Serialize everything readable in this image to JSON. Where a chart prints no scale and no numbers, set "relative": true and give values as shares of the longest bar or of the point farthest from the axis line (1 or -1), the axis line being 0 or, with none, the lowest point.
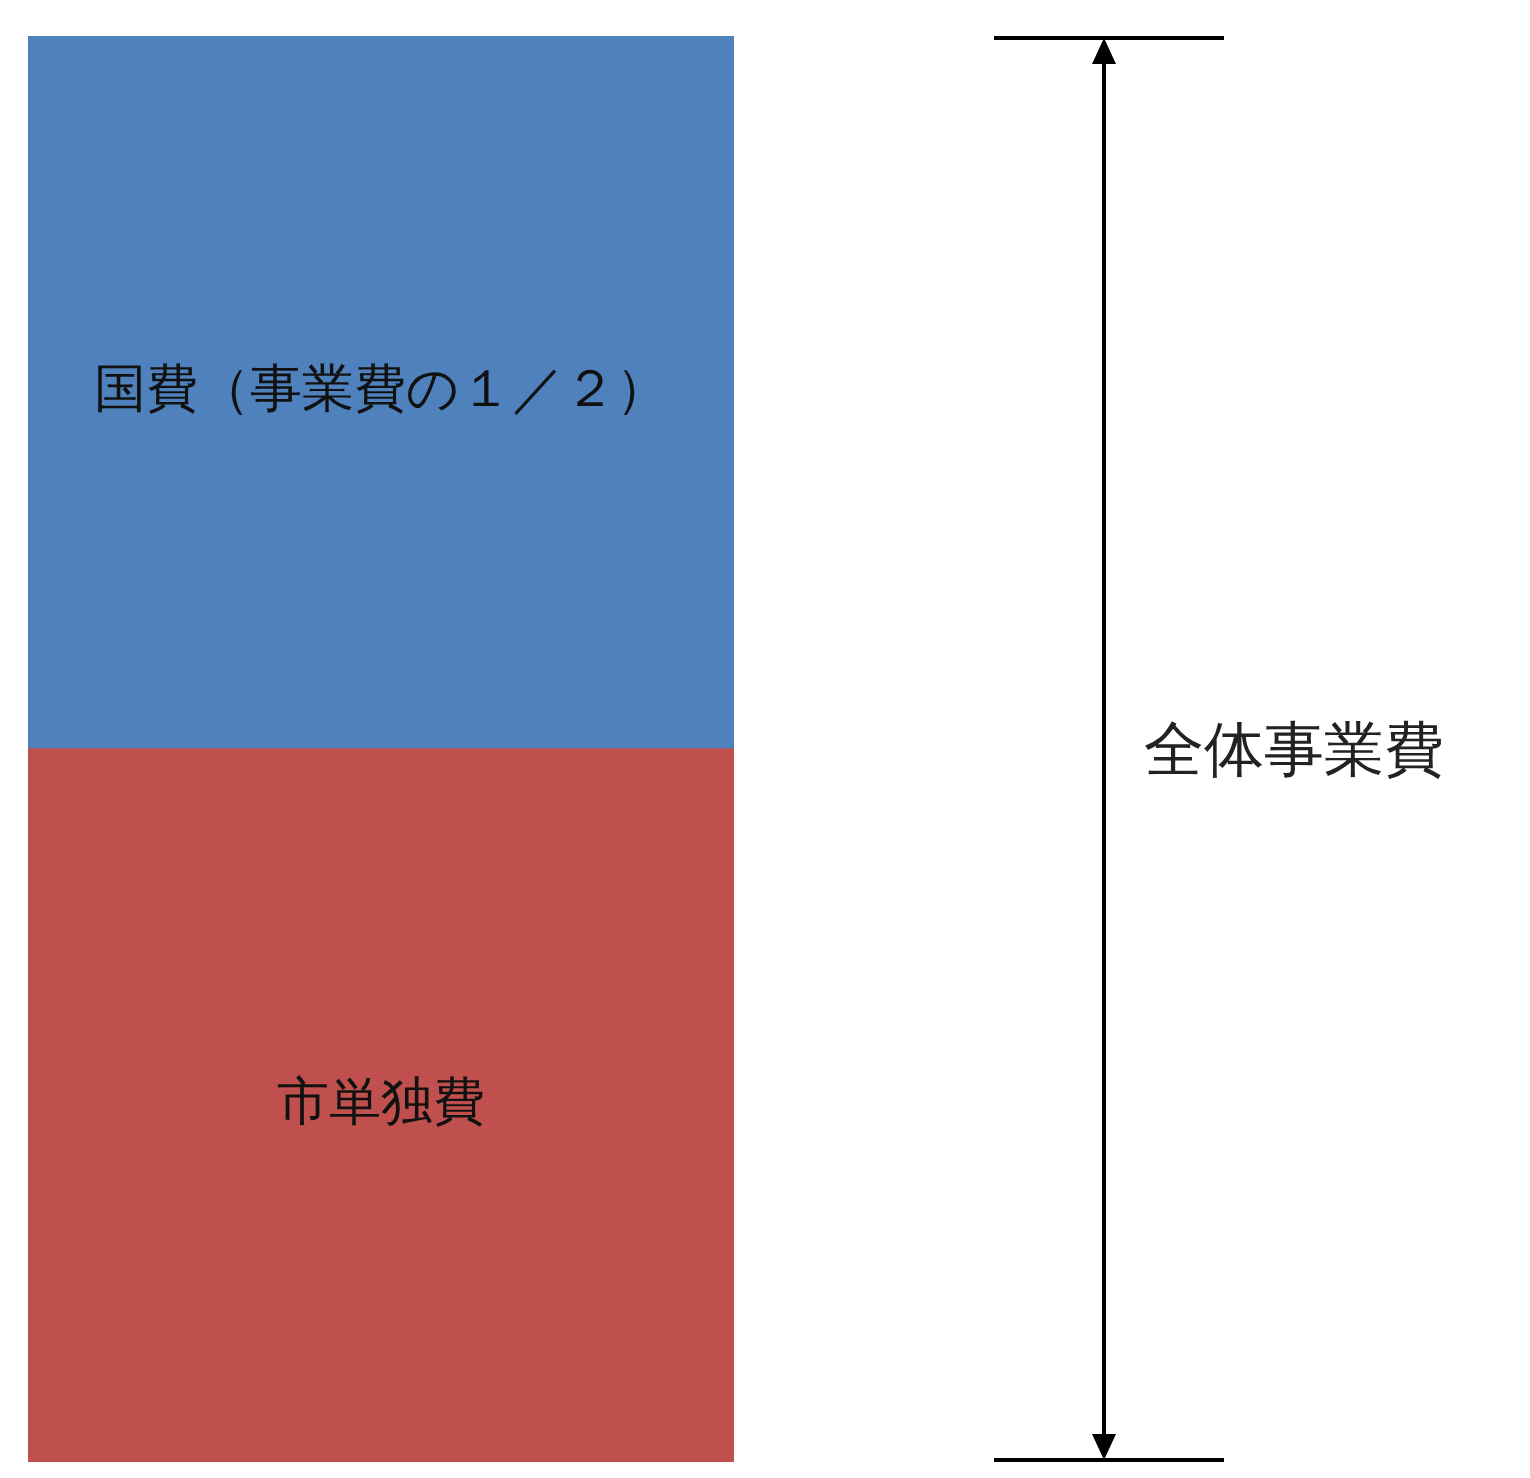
{
  "chart_data": {
    "type": "bar",
    "relative": true,
    "stacked": true,
    "categories": [
      null
    ],
    "series": [
      {
        "name": "市単独費",
        "color": "#c0504d",
        "values": [
          0.5
        ]
      },
      {
        "name": "国費（事業費の１／２）",
        "color": "#4f81bd",
        "values": [
          0.5
        ]
      }
    ],
    "annotations": [
      "全体事業費"
    ],
    "legend": false
  }
}
